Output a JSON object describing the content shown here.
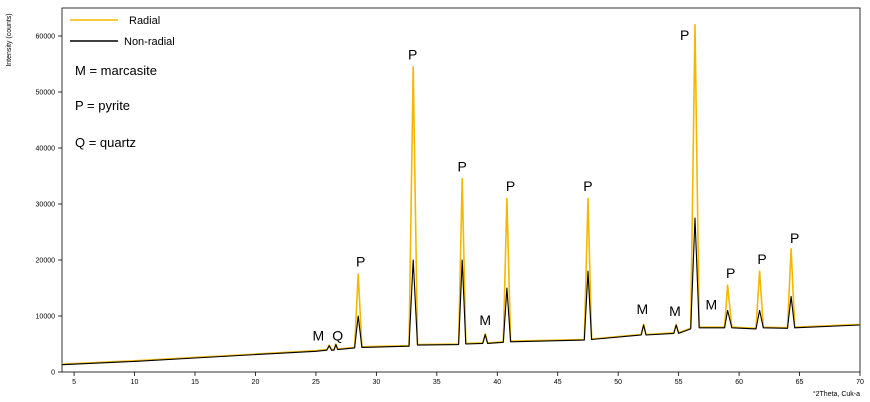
{
  "chart_data": {
    "type": "line",
    "xlabel": "°2Theta, Cuk-a",
    "ylabel": "Intensity (counts)",
    "xlim": [
      4,
      70
    ],
    "ylim": [
      0,
      65000
    ],
    "x_ticks": [
      5,
      10,
      15,
      20,
      25,
      30,
      35,
      40,
      45,
      50,
      55,
      60,
      65,
      70
    ],
    "y_ticks": [
      0,
      10000,
      20000,
      30000,
      40000,
      50000,
      60000
    ],
    "grid": false,
    "legend_position": "top-left",
    "series": [
      {
        "name": "Radial",
        "color": "#f5b800",
        "points": [
          [
            4,
            1400
          ],
          [
            10,
            2000
          ],
          [
            15,
            2600
          ],
          [
            20,
            3200
          ],
          [
            25,
            3800
          ],
          [
            25.9,
            4000
          ],
          [
            26.1,
            4800
          ],
          [
            26.3,
            4000
          ],
          [
            26.5,
            4000
          ],
          [
            26.65,
            5000
          ],
          [
            26.8,
            4100
          ],
          [
            28.2,
            4400
          ],
          [
            28.5,
            17500
          ],
          [
            28.8,
            4500
          ],
          [
            32.7,
            4700
          ],
          [
            33.05,
            54500
          ],
          [
            33.4,
            4900
          ],
          [
            36.8,
            5000
          ],
          [
            37.1,
            34500
          ],
          [
            37.4,
            5100
          ],
          [
            38.8,
            5200
          ],
          [
            39.0,
            6800
          ],
          [
            39.2,
            5200
          ],
          [
            40.5,
            5400
          ],
          [
            40.8,
            31000
          ],
          [
            41.1,
            5500
          ],
          [
            47.2,
            5800
          ],
          [
            47.5,
            31000
          ],
          [
            47.8,
            5900
          ],
          [
            51.9,
            6700
          ],
          [
            52.1,
            8500
          ],
          [
            52.3,
            6700
          ],
          [
            54.6,
            7000
          ],
          [
            54.8,
            8500
          ],
          [
            55.0,
            7000
          ],
          [
            56.0,
            7800
          ],
          [
            56.35,
            62000
          ],
          [
            56.7,
            8000
          ],
          [
            58.8,
            8000
          ],
          [
            59.05,
            15500
          ],
          [
            59.4,
            8000
          ],
          [
            61.4,
            7800
          ],
          [
            61.7,
            18000
          ],
          [
            62.0,
            8000
          ],
          [
            64.0,
            7900
          ],
          [
            64.3,
            22000
          ],
          [
            64.6,
            8000
          ],
          [
            70,
            8500
          ]
        ]
      },
      {
        "name": "Non-radial",
        "color": "#000000",
        "points": [
          [
            4,
            1300
          ],
          [
            10,
            1900
          ],
          [
            15,
            2500
          ],
          [
            20,
            3100
          ],
          [
            25,
            3700
          ],
          [
            25.9,
            3900
          ],
          [
            26.1,
            4700
          ],
          [
            26.3,
            3900
          ],
          [
            26.5,
            3900
          ],
          [
            26.65,
            4900
          ],
          [
            26.8,
            4000
          ],
          [
            28.2,
            4300
          ],
          [
            28.5,
            10000
          ],
          [
            28.8,
            4400
          ],
          [
            32.7,
            4600
          ],
          [
            33.05,
            20000
          ],
          [
            33.4,
            4800
          ],
          [
            36.8,
            4900
          ],
          [
            37.1,
            20000
          ],
          [
            37.4,
            5000
          ],
          [
            38.8,
            5100
          ],
          [
            39.0,
            6700
          ],
          [
            39.2,
            5100
          ],
          [
            40.5,
            5300
          ],
          [
            40.8,
            15000
          ],
          [
            41.1,
            5400
          ],
          [
            47.2,
            5700
          ],
          [
            47.5,
            18000
          ],
          [
            47.8,
            5800
          ],
          [
            51.9,
            6600
          ],
          [
            52.1,
            8400
          ],
          [
            52.3,
            6600
          ],
          [
            54.6,
            6900
          ],
          [
            54.8,
            8400
          ],
          [
            55.0,
            6900
          ],
          [
            56.0,
            7700
          ],
          [
            56.35,
            27500
          ],
          [
            56.7,
            7900
          ],
          [
            58.8,
            7900
          ],
          [
            59.05,
            11000
          ],
          [
            59.4,
            7900
          ],
          [
            61.4,
            7700
          ],
          [
            61.7,
            11000
          ],
          [
            62.0,
            7900
          ],
          [
            64.0,
            7800
          ],
          [
            64.3,
            13500
          ],
          [
            64.6,
            7900
          ],
          [
            70,
            8400
          ]
        ]
      }
    ],
    "notes": [
      "M = marcasite",
      "P = pyrite",
      "Q = quartz"
    ],
    "peak_labels": [
      {
        "text": "M",
        "x": 25.2,
        "y": 5600
      },
      {
        "text": "Q",
        "x": 26.8,
        "y": 5600
      },
      {
        "text": "P",
        "x": 28.7,
        "y": 18800
      },
      {
        "text": "P",
        "x": 33.0,
        "y": 55800
      },
      {
        "text": "P",
        "x": 37.1,
        "y": 35800
      },
      {
        "text": "M",
        "x": 39.0,
        "y": 8400
      },
      {
        "text": "P",
        "x": 41.1,
        "y": 32300
      },
      {
        "text": "P",
        "x": 47.5,
        "y": 32300
      },
      {
        "text": "M",
        "x": 52.0,
        "y": 10400
      },
      {
        "text": "M",
        "x": 54.7,
        "y": 10000
      },
      {
        "text": "P",
        "x": 55.5,
        "y": 59300
      },
      {
        "text": "M",
        "x": 57.7,
        "y": 11200
      },
      {
        "text": "P",
        "x": 59.3,
        "y": 16800
      },
      {
        "text": "P",
        "x": 61.9,
        "y": 19300
      },
      {
        "text": "P",
        "x": 64.6,
        "y": 23000
      }
    ]
  }
}
